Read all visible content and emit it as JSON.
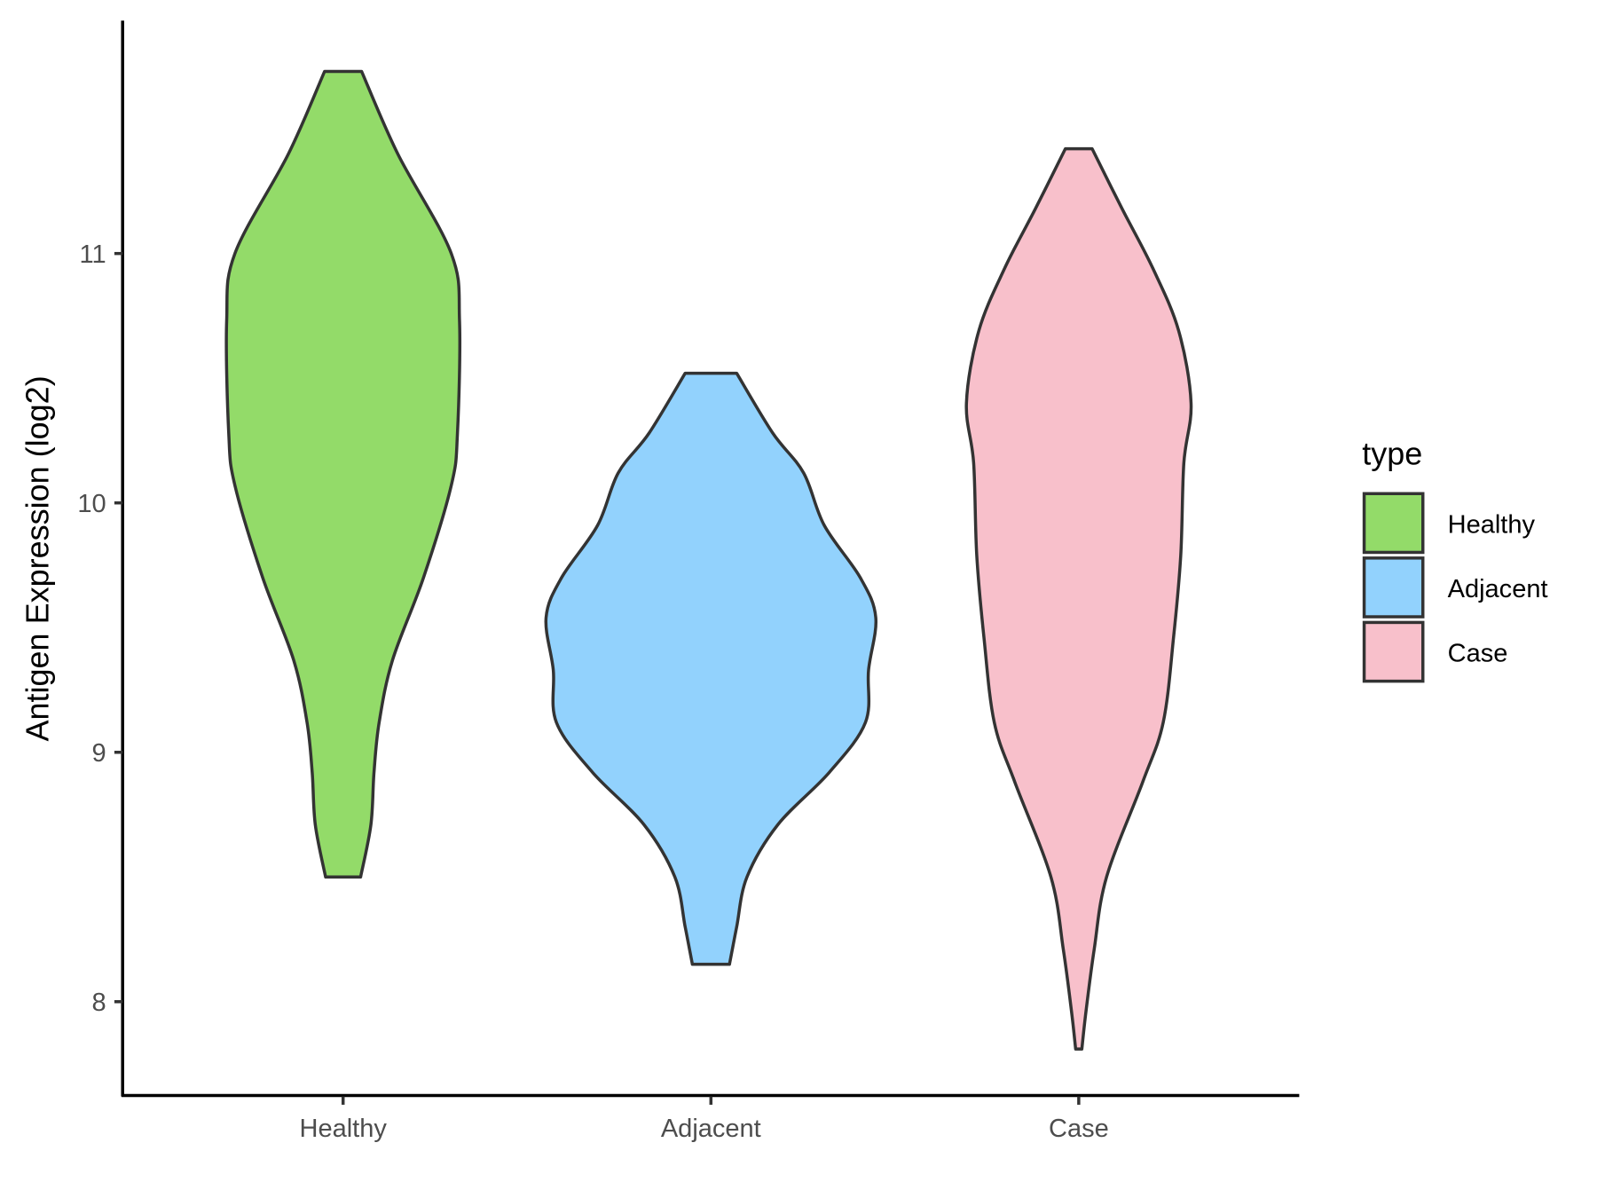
{
  "chart_data": {
    "type": "violin",
    "title": "",
    "xlabel": "",
    "ylabel": "Antigen Expression (log2)",
    "categories": [
      "Healthy",
      "Adjacent",
      "Case"
    ],
    "yticks": [
      8,
      9,
      10,
      11
    ],
    "ylim": [
      7.6,
      11.92
    ],
    "grid": false,
    "legend": {
      "title": "type",
      "position": "right",
      "entries": [
        "Healthy",
        "Adjacent",
        "Case"
      ]
    },
    "colors": {
      "Healthy": "#93DB69",
      "Adjacent": "#92D2FD",
      "Case": "#F8C0CB",
      "outline": "#333333"
    },
    "series": [
      {
        "name": "Healthy",
        "min": 8.5,
        "max": 11.73,
        "density": [
          [
            8.5,
            17
          ],
          [
            8.71,
            27
          ],
          [
            8.92,
            30
          ],
          [
            9.12,
            35
          ],
          [
            9.37,
            48
          ],
          [
            9.7,
            78
          ],
          [
            10.07,
            105
          ],
          [
            10.28,
            111
          ],
          [
            10.73,
            113
          ],
          [
            11.0,
            105
          ],
          [
            11.4,
            53
          ],
          [
            11.73,
            18
          ]
        ]
      },
      {
        "name": "Adjacent",
        "min": 8.15,
        "max": 10.52,
        "density": [
          [
            8.15,
            18
          ],
          [
            8.3,
            25
          ],
          [
            8.5,
            35
          ],
          [
            8.71,
            65
          ],
          [
            8.92,
            115
          ],
          [
            9.12,
            150
          ],
          [
            9.33,
            153
          ],
          [
            9.54,
            160
          ],
          [
            9.7,
            145
          ],
          [
            9.91,
            110
          ],
          [
            10.12,
            90
          ],
          [
            10.28,
            60
          ],
          [
            10.52,
            25
          ]
        ]
      },
      {
        "name": "Case",
        "min": 7.81,
        "max": 11.42,
        "density": [
          [
            7.81,
            3
          ],
          [
            7.96,
            7
          ],
          [
            8.21,
            15
          ],
          [
            8.5,
            27
          ],
          [
            8.88,
            62
          ],
          [
            9.12,
            82
          ],
          [
            9.46,
            92
          ],
          [
            9.79,
            99
          ],
          [
            10.16,
            102
          ],
          [
            10.4,
            109
          ],
          [
            10.69,
            97
          ],
          [
            10.94,
            72
          ],
          [
            11.18,
            42
          ],
          [
            11.42,
            13
          ]
        ]
      }
    ]
  }
}
